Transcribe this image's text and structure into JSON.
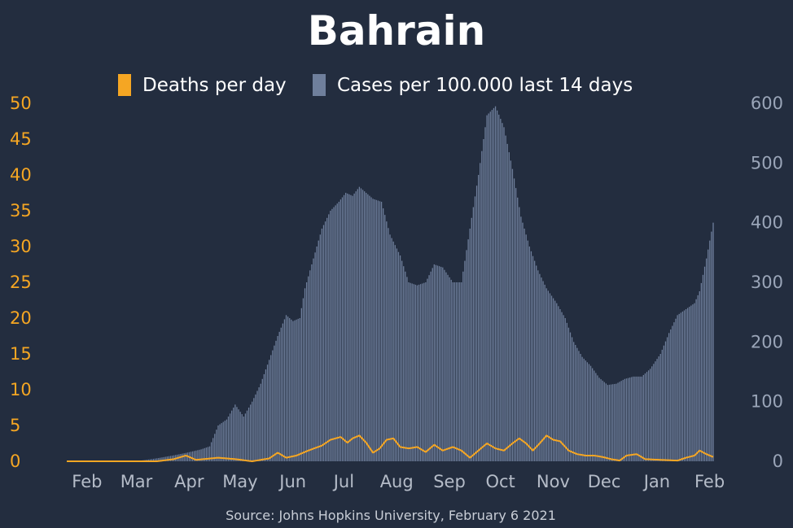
{
  "chart_data": {
    "type": "bar",
    "title": "Bahrain",
    "source": "Source: Johns Hopkins University, February 6 2021",
    "legend": {
      "placement": "top-center"
    },
    "grid": false,
    "x_ticks": [
      "Feb",
      "Mar",
      "Apr",
      "May",
      "Jun",
      "Jul",
      "Aug",
      "Sep",
      "Oct",
      "Nov",
      "Dec",
      "Jan",
      "Feb"
    ],
    "y_left": {
      "ticks": [
        0,
        5,
        10,
        15,
        20,
        25,
        30,
        35,
        40,
        45,
        50
      ],
      "range": [
        0,
        50
      ],
      "color": "#f5a623"
    },
    "y_right": {
      "ticks": [
        0,
        100,
        200,
        300,
        400,
        500,
        600
      ],
      "range": [
        0,
        600
      ],
      "color": "#9aa5b8"
    },
    "x_range": [
      "2020-01-22",
      "2021-02-05"
    ],
    "series": [
      {
        "name": "Deaths per day",
        "type": "line",
        "axis": "left",
        "color": "#f5a623",
        "points": [
          [
            "2020-01-22",
            0
          ],
          [
            "2020-03-15",
            0
          ],
          [
            "2020-03-25",
            0.3
          ],
          [
            "2020-04-01",
            0.8
          ],
          [
            "2020-04-07",
            0.2
          ],
          [
            "2020-04-20",
            0.5
          ],
          [
            "2020-04-30",
            0.3
          ],
          [
            "2020-05-10",
            0
          ],
          [
            "2020-05-20",
            0.4
          ],
          [
            "2020-05-25",
            1.2
          ],
          [
            "2020-05-30",
            0.5
          ],
          [
            "2020-06-05",
            0.8
          ],
          [
            "2020-06-12",
            1.5
          ],
          [
            "2020-06-20",
            2.2
          ],
          [
            "2020-06-25",
            3.0
          ],
          [
            "2020-07-01",
            3.4
          ],
          [
            "2020-07-05",
            2.6
          ],
          [
            "2020-07-08",
            3.2
          ],
          [
            "2020-07-12",
            3.6
          ],
          [
            "2020-07-16",
            2.6
          ],
          [
            "2020-07-20",
            1.2
          ],
          [
            "2020-07-24",
            1.8
          ],
          [
            "2020-07-28",
            3.0
          ],
          [
            "2020-08-01",
            3.2
          ],
          [
            "2020-08-05",
            2.0
          ],
          [
            "2020-08-10",
            1.8
          ],
          [
            "2020-08-15",
            2.0
          ],
          [
            "2020-08-20",
            1.3
          ],
          [
            "2020-08-25",
            2.3
          ],
          [
            "2020-08-30",
            1.5
          ],
          [
            "2020-09-05",
            2.0
          ],
          [
            "2020-09-10",
            1.5
          ],
          [
            "2020-09-15",
            0.5
          ],
          [
            "2020-09-20",
            1.5
          ],
          [
            "2020-09-25",
            2.5
          ],
          [
            "2020-09-30",
            1.8
          ],
          [
            "2020-10-05",
            1.5
          ],
          [
            "2020-10-10",
            2.5
          ],
          [
            "2020-10-14",
            3.2
          ],
          [
            "2020-10-18",
            2.5
          ],
          [
            "2020-10-22",
            1.5
          ],
          [
            "2020-10-26",
            2.5
          ],
          [
            "2020-10-30",
            3.6
          ],
          [
            "2020-11-03",
            3.0
          ],
          [
            "2020-11-07",
            2.8
          ],
          [
            "2020-11-12",
            1.5
          ],
          [
            "2020-11-17",
            1.0
          ],
          [
            "2020-11-22",
            0.8
          ],
          [
            "2020-11-27",
            0.8
          ],
          [
            "2020-12-02",
            0.6
          ],
          [
            "2020-12-07",
            0.3
          ],
          [
            "2020-12-12",
            0.1
          ],
          [
            "2020-12-16",
            0.8
          ],
          [
            "2020-12-22",
            1.0
          ],
          [
            "2020-12-27",
            0.3
          ],
          [
            "2021-01-05",
            0.2
          ],
          [
            "2021-01-15",
            0.1
          ],
          [
            "2021-01-20",
            0.5
          ],
          [
            "2021-01-25",
            0.8
          ],
          [
            "2021-01-28",
            1.5
          ],
          [
            "2021-02-01",
            1.0
          ],
          [
            "2021-02-05",
            0.6
          ]
        ]
      },
      {
        "name": "Cases per 100.000 last 14 days",
        "type": "bar",
        "axis": "right",
        "color": "#6f7f9c",
        "points": [
          [
            "2020-01-22",
            0
          ],
          [
            "2020-02-20",
            0
          ],
          [
            "2020-03-05",
            1
          ],
          [
            "2020-03-15",
            5
          ],
          [
            "2020-03-25",
            10
          ],
          [
            "2020-04-01",
            14
          ],
          [
            "2020-04-10",
            20
          ],
          [
            "2020-04-15",
            25
          ],
          [
            "2020-04-20",
            60
          ],
          [
            "2020-04-25",
            70
          ],
          [
            "2020-04-30",
            95
          ],
          [
            "2020-05-05",
            75
          ],
          [
            "2020-05-10",
            100
          ],
          [
            "2020-05-15",
            130
          ],
          [
            "2020-05-20",
            170
          ],
          [
            "2020-05-25",
            210
          ],
          [
            "2020-05-30",
            245
          ],
          [
            "2020-06-03",
            235
          ],
          [
            "2020-06-07",
            240
          ],
          [
            "2020-06-10",
            290
          ],
          [
            "2020-06-15",
            340
          ],
          [
            "2020-06-20",
            390
          ],
          [
            "2020-06-25",
            420
          ],
          [
            "2020-06-30",
            435
          ],
          [
            "2020-07-04",
            450
          ],
          [
            "2020-07-08",
            445
          ],
          [
            "2020-07-12",
            460
          ],
          [
            "2020-07-16",
            450
          ],
          [
            "2020-07-20",
            440
          ],
          [
            "2020-07-25",
            435
          ],
          [
            "2020-07-30",
            380
          ],
          [
            "2020-08-05",
            345
          ],
          [
            "2020-08-10",
            300
          ],
          [
            "2020-08-15",
            295
          ],
          [
            "2020-08-20",
            300
          ],
          [
            "2020-08-25",
            330
          ],
          [
            "2020-08-30",
            325
          ],
          [
            "2020-09-05",
            300
          ],
          [
            "2020-09-10",
            300
          ],
          [
            "2020-09-15",
            390
          ],
          [
            "2020-09-20",
            480
          ],
          [
            "2020-09-25",
            580
          ],
          [
            "2020-09-30",
            595
          ],
          [
            "2020-10-05",
            560
          ],
          [
            "2020-10-10",
            490
          ],
          [
            "2020-10-15",
            410
          ],
          [
            "2020-10-20",
            360
          ],
          [
            "2020-10-25",
            320
          ],
          [
            "2020-10-30",
            290
          ],
          [
            "2020-11-05",
            265
          ],
          [
            "2020-11-10",
            240
          ],
          [
            "2020-11-15",
            200
          ],
          [
            "2020-11-20",
            175
          ],
          [
            "2020-11-25",
            160
          ],
          [
            "2020-11-30",
            140
          ],
          [
            "2020-12-05",
            128
          ],
          [
            "2020-12-10",
            130
          ],
          [
            "2020-12-15",
            138
          ],
          [
            "2020-12-20",
            142
          ],
          [
            "2020-12-25",
            142
          ],
          [
            "2020-12-30",
            155
          ],
          [
            "2021-01-05",
            180
          ],
          [
            "2021-01-10",
            215
          ],
          [
            "2021-01-15",
            245
          ],
          [
            "2021-01-20",
            255
          ],
          [
            "2021-01-25",
            265
          ],
          [
            "2021-01-28",
            285
          ],
          [
            "2021-02-01",
            340
          ],
          [
            "2021-02-05",
            400
          ]
        ]
      }
    ]
  }
}
